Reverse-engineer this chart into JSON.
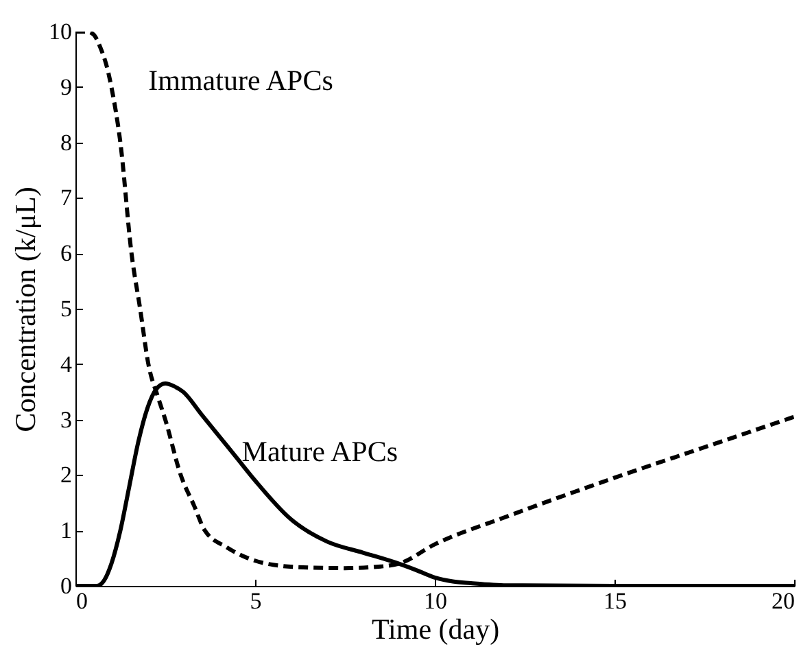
{
  "chart_data": {
    "type": "line",
    "xlabel": "Time (day)",
    "ylabel": "Concentration (k/μL)",
    "xlim": [
      0,
      20
    ],
    "ylim": [
      0,
      10
    ],
    "xticks": [
      0,
      5,
      10,
      15,
      20
    ],
    "yticks": [
      0,
      1,
      2,
      3,
      4,
      5,
      6,
      7,
      8,
      9,
      10
    ],
    "grid": false,
    "marker": "none",
    "annotations": [
      "Immature APCs",
      "Mature APCs"
    ],
    "series": [
      {
        "color": "#000000",
        "line_style": "dashed",
        "x": [
          0,
          0.3,
          0.5,
          0.7,
          0.9,
          1.0,
          1.25,
          1.56,
          1.8,
          2.03,
          2.3,
          2.5,
          2.93,
          3.3,
          3.6,
          4.2,
          4.8,
          5.5,
          6.5,
          7.5,
          8.5,
          9,
          10,
          12,
          15,
          17.5,
          20
        ],
        "values": [
          10,
          10,
          9.95,
          9.7,
          9.3,
          9.0,
          8.0,
          6.0,
          5.0,
          4.0,
          3.4,
          3.0,
          2.0,
          1.45,
          1.0,
          0.7,
          0.5,
          0.38,
          0.33,
          0.32,
          0.35,
          0.4,
          0.75,
          1.25,
          1.95,
          2.5,
          3.05
        ]
      },
      {
        "color": "#000000",
        "line_style": "solid",
        "x": [
          0,
          0.6,
          0.8,
          1.0,
          1.25,
          1.5,
          1.75,
          2.0,
          2.25,
          2.5,
          2.75,
          3.0,
          3.5,
          4.0,
          4.5,
          5.0,
          6.0,
          7.0,
          8.0,
          9.0,
          9.5,
          10,
          10.5,
          11,
          12,
          15,
          20
        ],
        "values": [
          0,
          0,
          0.1,
          0.4,
          1.0,
          1.8,
          2.6,
          3.2,
          3.55,
          3.65,
          3.6,
          3.5,
          3.1,
          2.7,
          2.3,
          1.9,
          1.2,
          0.8,
          0.6,
          0.4,
          0.28,
          0.15,
          0.08,
          0.05,
          0.01,
          0,
          0
        ]
      }
    ]
  }
}
